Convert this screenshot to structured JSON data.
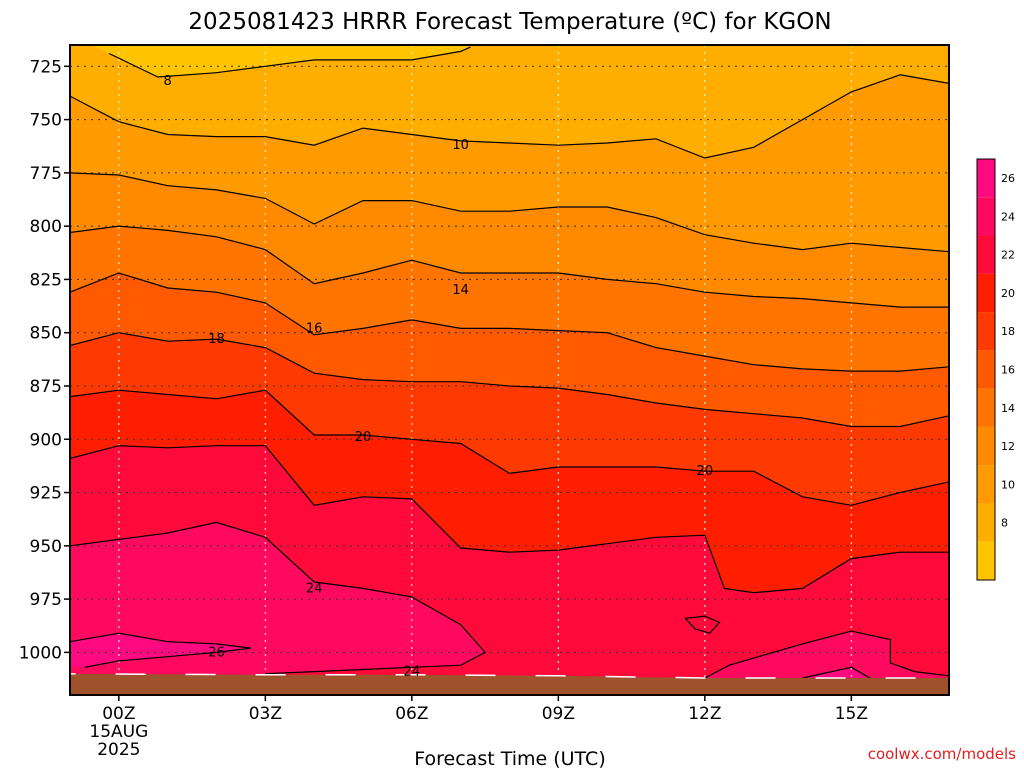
{
  "chart_data": {
    "type": "heatmap",
    "title": "2025081423 HRRR Forecast Temperature (ºC) for KGON",
    "xlabel": "Forecast Time (UTC)",
    "ylabel": "",
    "x_ticks": [
      {
        "hour": 0,
        "lines": [
          "00Z",
          "15AUG",
          "2025"
        ]
      },
      {
        "hour": 3,
        "lines": [
          "03Z"
        ]
      },
      {
        "hour": 6,
        "lines": [
          "06Z"
        ]
      },
      {
        "hour": 9,
        "lines": [
          "09Z"
        ]
      },
      {
        "hour": 12,
        "lines": [
          "12Z"
        ]
      },
      {
        "hour": 15,
        "lines": [
          "15Z"
        ]
      }
    ],
    "x_range_hours": [
      -1,
      17
    ],
    "y_ticks": [
      725,
      750,
      775,
      800,
      825,
      850,
      875,
      900,
      925,
      950,
      975,
      1000
    ],
    "y_range_hpa": [
      715,
      1020
    ],
    "y_axis_inverted": true,
    "grid": true,
    "surface_fill_color": "#a0522d",
    "colorbar": {
      "ticks": [
        8,
        10,
        12,
        14,
        16,
        18,
        20,
        22,
        24,
        26
      ],
      "levels": [
        6,
        8,
        10,
        12,
        14,
        16,
        18,
        20,
        22,
        24,
        26,
        28
      ],
      "colors": [
        "#ffc400",
        "#ffae00",
        "#ff9a00",
        "#ff8a00",
        "#ff7500",
        "#ff5a00",
        "#ff3a00",
        "#ff1e00",
        "#ff0a3a",
        "#ff0a5f",
        "#ff0a80"
      ]
    },
    "contour_labels": [
      {
        "value": "8",
        "hour": 1.0,
        "hpa": 732
      },
      {
        "value": "10",
        "hour": 7.0,
        "hpa": 762
      },
      {
        "value": "14",
        "hour": 7.0,
        "hpa": 830
      },
      {
        "value": "16",
        "hour": 4.0,
        "hpa": 848
      },
      {
        "value": "18",
        "hour": 2.0,
        "hpa": 853
      },
      {
        "value": "20",
        "hour": 5.0,
        "hpa": 899
      },
      {
        "value": "20",
        "hour": 12.0,
        "hpa": 915
      },
      {
        "value": "24",
        "hour": 4.0,
        "hpa": 970
      },
      {
        "value": "26",
        "hour": 2.0,
        "hpa": 1000
      },
      {
        "value": "24",
        "hour": 6.0,
        "hpa": 1009
      }
    ],
    "series": [
      {
        "level": 8,
        "points": [
          [
            -0.2,
            719
          ],
          [
            0.8,
            730
          ],
          [
            2,
            728
          ],
          [
            3,
            725
          ],
          [
            4,
            722
          ],
          [
            5,
            722
          ],
          [
            6,
            722
          ],
          [
            7,
            718
          ],
          [
            7.2,
            716
          ]
        ]
      },
      {
        "level": 10,
        "points": [
          [
            -1,
            739
          ],
          [
            0,
            751
          ],
          [
            1,
            757
          ],
          [
            2,
            758
          ],
          [
            3,
            758
          ],
          [
            4,
            762
          ],
          [
            5,
            754
          ],
          [
            6,
            757
          ],
          [
            7,
            760
          ],
          [
            8,
            761
          ],
          [
            9,
            762
          ],
          [
            10,
            761
          ],
          [
            11,
            759
          ],
          [
            12,
            768
          ],
          [
            13,
            763
          ],
          [
            14,
            750
          ],
          [
            15,
            737
          ],
          [
            16,
            729
          ],
          [
            17,
            733
          ]
        ]
      },
      {
        "level": 12,
        "points": [
          [
            -1,
            775
          ],
          [
            0,
            776
          ],
          [
            1,
            781
          ],
          [
            2,
            783
          ],
          [
            3,
            787
          ],
          [
            4,
            799
          ],
          [
            5,
            788
          ],
          [
            6,
            788
          ],
          [
            7,
            793
          ],
          [
            8,
            793
          ],
          [
            9,
            791
          ],
          [
            10,
            791
          ],
          [
            11,
            796
          ],
          [
            12,
            804
          ],
          [
            13,
            808
          ],
          [
            14,
            811
          ],
          [
            15,
            808
          ],
          [
            16,
            810
          ],
          [
            17,
            812
          ]
        ]
      },
      {
        "level": 14,
        "points": [
          [
            -1,
            803
          ],
          [
            0,
            800
          ],
          [
            1,
            802
          ],
          [
            2,
            805
          ],
          [
            3,
            811
          ],
          [
            4,
            827
          ],
          [
            5,
            822
          ],
          [
            6,
            816
          ],
          [
            7,
            822
          ],
          [
            8,
            822
          ],
          [
            9,
            822
          ],
          [
            10,
            825
          ],
          [
            11,
            827
          ],
          [
            12,
            831
          ],
          [
            13,
            833
          ],
          [
            14,
            834
          ],
          [
            15,
            836
          ],
          [
            16,
            838
          ],
          [
            17,
            838
          ]
        ]
      },
      {
        "level": 16,
        "points": [
          [
            -1,
            831
          ],
          [
            0,
            822
          ],
          [
            1,
            829
          ],
          [
            2,
            831
          ],
          [
            3,
            836
          ],
          [
            4,
            851
          ],
          [
            5,
            848
          ],
          [
            6,
            844
          ],
          [
            7,
            848
          ],
          [
            8,
            848
          ],
          [
            9,
            849
          ],
          [
            10,
            850
          ],
          [
            11,
            857
          ],
          [
            12,
            861
          ],
          [
            13,
            865
          ],
          [
            14,
            867
          ],
          [
            15,
            868
          ],
          [
            16,
            868
          ],
          [
            17,
            866
          ]
        ]
      },
      {
        "level": 18,
        "points": [
          [
            -1,
            856
          ],
          [
            0,
            850
          ],
          [
            1,
            854
          ],
          [
            2,
            853
          ],
          [
            3,
            857
          ],
          [
            4,
            869
          ],
          [
            5,
            872
          ],
          [
            6,
            873
          ],
          [
            7,
            873
          ],
          [
            8,
            875
          ],
          [
            9,
            876
          ],
          [
            10,
            879
          ],
          [
            11,
            883
          ],
          [
            12,
            886
          ],
          [
            13,
            888
          ],
          [
            14,
            890
          ],
          [
            15,
            894
          ],
          [
            16,
            894
          ],
          [
            17,
            889
          ]
        ]
      },
      {
        "level": 20,
        "points": [
          [
            -1,
            880
          ],
          [
            0,
            877
          ],
          [
            1,
            879
          ],
          [
            2,
            881
          ],
          [
            3,
            877
          ],
          [
            4,
            898
          ],
          [
            5,
            898
          ],
          [
            6,
            900
          ],
          [
            7,
            902
          ],
          [
            8,
            916
          ],
          [
            9,
            913
          ],
          [
            10,
            913
          ],
          [
            11,
            913
          ],
          [
            12,
            915
          ],
          [
            13,
            915
          ],
          [
            14,
            927
          ],
          [
            15,
            931
          ],
          [
            16,
            925
          ],
          [
            17,
            920
          ]
        ]
      },
      {
        "level": 22,
        "points": [
          [
            -1,
            909
          ],
          [
            0,
            903
          ],
          [
            1,
            904
          ],
          [
            2,
            903
          ],
          [
            3,
            903
          ],
          [
            4,
            931
          ],
          [
            5,
            927
          ],
          [
            6,
            928
          ],
          [
            7,
            951
          ],
          [
            8,
            953
          ],
          [
            9,
            952
          ],
          [
            10,
            949
          ],
          [
            11,
            946
          ],
          [
            12,
            945
          ],
          [
            12.4,
            970
          ],
          [
            13,
            972
          ],
          [
            14,
            970
          ],
          [
            15,
            956
          ],
          [
            16,
            953
          ],
          [
            17,
            953
          ]
        ]
      },
      {
        "level": 22,
        "points": [
          [
            11.6,
            984
          ],
          [
            12,
            983
          ],
          [
            12.3,
            986
          ],
          [
            12.1,
            991
          ],
          [
            11.8,
            989
          ],
          [
            11.6,
            984
          ]
        ]
      },
      {
        "level": 24,
        "points": [
          [
            -1,
            950
          ],
          [
            0,
            947
          ],
          [
            1,
            944
          ],
          [
            2,
            939
          ],
          [
            3,
            946
          ],
          [
            4,
            967
          ],
          [
            5,
            970
          ],
          [
            6,
            974
          ],
          [
            7,
            987
          ],
          [
            7.5,
            1000
          ],
          [
            7,
            1006
          ],
          [
            6,
            1007
          ],
          [
            4,
            1009
          ],
          [
            3,
            1010
          ]
        ]
      },
      {
        "level": 24,
        "points": [
          [
            12,
            1012
          ],
          [
            12.5,
            1006
          ],
          [
            14,
            996
          ],
          [
            15,
            990
          ],
          [
            15.8,
            994
          ],
          [
            15.8,
            1005
          ],
          [
            16.3,
            1009
          ],
          [
            17,
            1011
          ]
        ]
      },
      {
        "level": 26,
        "points": [
          [
            -1,
            995
          ],
          [
            0,
            991
          ],
          [
            1,
            995
          ],
          [
            2,
            996
          ],
          [
            2.7,
            998
          ],
          [
            2,
            1000
          ],
          [
            0,
            1004
          ],
          [
            -0.7,
            1007
          ]
        ]
      },
      {
        "level": 26,
        "points": [
          [
            14,
            1012
          ],
          [
            15,
            1007
          ],
          [
            15.6,
            1015
          ]
        ]
      }
    ]
  }
}
